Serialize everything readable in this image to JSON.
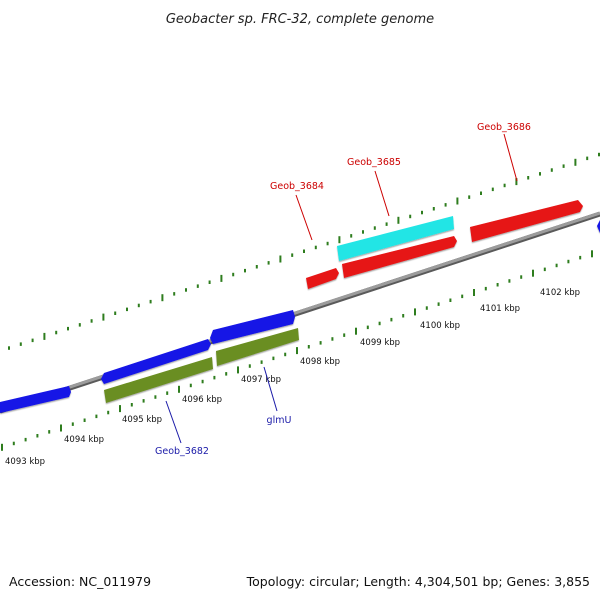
{
  "title": "Geobacter sp. FRC-32, complete genome",
  "footer": {
    "accession": "Accession: NC_011979",
    "summary": "Topology: circular; Length: 4,304,501 bp; Genes: 3,855"
  },
  "colors": {
    "backbone": "#8a8a8a",
    "tick": "#2e7d1e",
    "blue_gene": "#1414e6",
    "olive_gene": "#6b8e23",
    "red_gene": "#e61414",
    "cyan_gene": "#22e5e5",
    "red_label": "#cc0000",
    "blue_label": "#1a1aa8"
  },
  "scale": {
    "labels": [
      {
        "id": "4093",
        "text": "4093 kbp"
      },
      {
        "id": "4094",
        "text": "4094 kbp"
      },
      {
        "id": "4095",
        "text": "4095 kbp"
      },
      {
        "id": "4096",
        "text": "4096 kbp"
      },
      {
        "id": "4097",
        "text": "4097 kbp"
      },
      {
        "id": "4098",
        "text": "4098 kbp"
      },
      {
        "id": "4099",
        "text": "4099 kbp"
      },
      {
        "id": "4100",
        "text": "4100 kbp"
      },
      {
        "id": "4101",
        "text": "4101 kbp"
      },
      {
        "id": "4102",
        "text": "4102 kbp"
      }
    ]
  },
  "features": [
    {
      "name": "Geob_3682",
      "strand": "reverse",
      "color": "olive"
    },
    {
      "name": "glmU",
      "strand": "reverse",
      "color": "olive"
    },
    {
      "name": "Geob_3684",
      "strand": "forward",
      "color": "red"
    },
    {
      "name": "Geob_3685",
      "strand": "forward",
      "color": "cyan"
    },
    {
      "name": "Geob_3686",
      "strand": "forward",
      "color": "red"
    }
  ]
}
